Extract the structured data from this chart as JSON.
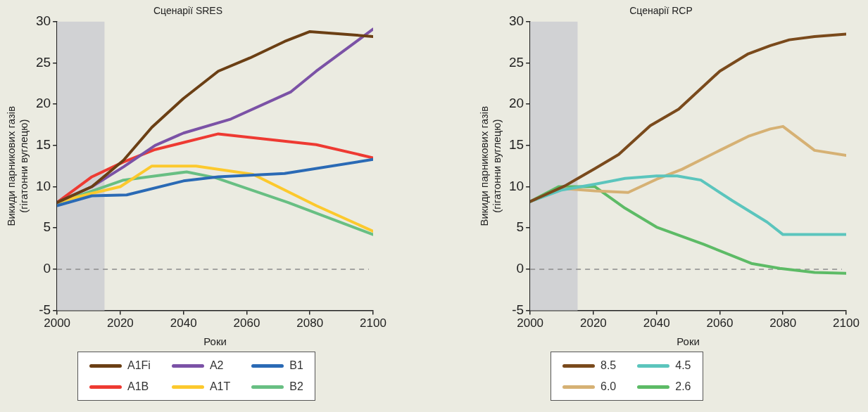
{
  "chart_data": [
    {
      "type": "line",
      "title": "Сценарії SRES",
      "xlabel": "Роки",
      "ylabel": "Викиди парникових газів\n(гігатонни вуглецю)",
      "xlim": [
        2000,
        2100
      ],
      "xticks": [
        2000,
        2020,
        2040,
        2060,
        2080,
        2100
      ],
      "ylim": [
        -5,
        30
      ],
      "yticks": [
        -5,
        0,
        5,
        10,
        15,
        20,
        25,
        30
      ],
      "grid": false,
      "legend": "bottom",
      "marker": "none",
      "line_style": "solid",
      "bands": [
        {
          "axis": "x",
          "from": 2000,
          "to": 2015,
          "color": "#d1d2d4"
        }
      ],
      "ref_lines": [
        {
          "axis": "y",
          "value": 0,
          "color": "#8c8c8c",
          "line_style": "dashed"
        }
      ],
      "series": [
        {
          "name": "A1Fi",
          "color": "#6b3f14",
          "x": [
            2000,
            2011,
            2021,
            2030,
            2040,
            2051,
            2061,
            2072,
            2080,
            2100
          ],
          "values": [
            8.1,
            10.0,
            13.2,
            17.2,
            20.7,
            24.0,
            25.6,
            27.6,
            28.8,
            28.2
          ]
        },
        {
          "name": "A2",
          "color": "#7b52a6",
          "x": [
            2000,
            2011,
            2021,
            2031,
            2040,
            2055,
            2074,
            2082,
            2100
          ],
          "values": [
            8.1,
            10.0,
            12.4,
            15.0,
            16.5,
            18.2,
            21.5,
            24.0,
            29.1
          ]
        },
        {
          "name": "B1",
          "color": "#2a6ab5",
          "x": [
            2000,
            2011,
            2022,
            2040,
            2051,
            2072,
            2100
          ],
          "values": [
            7.7,
            8.9,
            9.0,
            10.7,
            11.2,
            11.6,
            13.3
          ]
        },
        {
          "name": "A1B",
          "color": "#ee3a32",
          "x": [
            2000,
            2011,
            2021,
            2031,
            2051,
            2082,
            2100
          ],
          "values": [
            8.1,
            11.2,
            13.0,
            14.5,
            16.4,
            15.1,
            13.5
          ]
        },
        {
          "name": "A1T",
          "color": "#fcc92d",
          "x": [
            2000,
            2011,
            2020,
            2030,
            2044,
            2062,
            2082,
            2100
          ],
          "values": [
            8.1,
            9.2,
            10.0,
            12.5,
            12.5,
            11.5,
            7.7,
            4.6
          ]
        },
        {
          "name": "B2",
          "color": "#68bf83",
          "x": [
            2000,
            2021,
            2041,
            2050,
            2073,
            2100
          ],
          "values": [
            8.0,
            10.8,
            11.8,
            11.1,
            8.1,
            4.2
          ]
        }
      ]
    },
    {
      "type": "line",
      "title": "Сценарії RCP",
      "xlabel": "Роки",
      "ylabel": "Викиди парникових газів\n(гігатонни вуглецю)",
      "xlim": [
        2000,
        2100
      ],
      "xticks": [
        2000,
        2020,
        2040,
        2060,
        2080,
        2100
      ],
      "ylim": [
        -5,
        30
      ],
      "yticks": [
        -5,
        0,
        5,
        10,
        15,
        20,
        25,
        30
      ],
      "grid": false,
      "legend": "bottom",
      "marker": "none",
      "line_style": "solid",
      "bands": [
        {
          "axis": "x",
          "from": 2000,
          "to": 2015,
          "color": "#d1d2d4"
        }
      ],
      "ref_lines": [
        {
          "axis": "y",
          "value": 0,
          "color": "#8c8c8c",
          "line_style": "dashed"
        }
      ],
      "series": [
        {
          "name": "8.5",
          "color": "#7a4a1c",
          "x": [
            2000,
            2011,
            2020.5,
            2028,
            2038,
            2047,
            2060,
            2069,
            2076,
            2082,
            2090,
            2100
          ],
          "values": [
            8.2,
            10.1,
            12.2,
            13.9,
            17.4,
            19.4,
            24.0,
            26.1,
            27.1,
            27.8,
            28.2,
            28.5
          ]
        },
        {
          "name": "4.5",
          "color": "#5bc5bd",
          "x": [
            2000,
            2010,
            2020.5,
            2030,
            2040,
            2046.5,
            2054,
            2064,
            2075,
            2080,
            2100
          ],
          "values": [
            8.2,
            9.6,
            10.3,
            11.0,
            11.3,
            11.3,
            10.8,
            8.3,
            5.7,
            4.2,
            4.2
          ]
        },
        {
          "name": "6.0",
          "color": "#d6b174",
          "x": [
            2000,
            2010,
            2020.5,
            2031,
            2040,
            2048,
            2060,
            2069,
            2076,
            2080,
            2090,
            2100
          ],
          "values": [
            8.2,
            9.8,
            9.5,
            9.3,
            10.9,
            12.1,
            14.4,
            16.1,
            17.0,
            17.3,
            14.4,
            13.8
          ]
        },
        {
          "name": "2.6",
          "color": "#5dbb66",
          "x": [
            2000,
            2009,
            2020.5,
            2030,
            2040,
            2055,
            2070,
            2079,
            2090,
            2100
          ],
          "values": [
            8.2,
            10.0,
            10.0,
            7.4,
            5.1,
            3.0,
            0.7,
            0.1,
            -0.4,
            -0.5
          ]
        }
      ]
    }
  ]
}
